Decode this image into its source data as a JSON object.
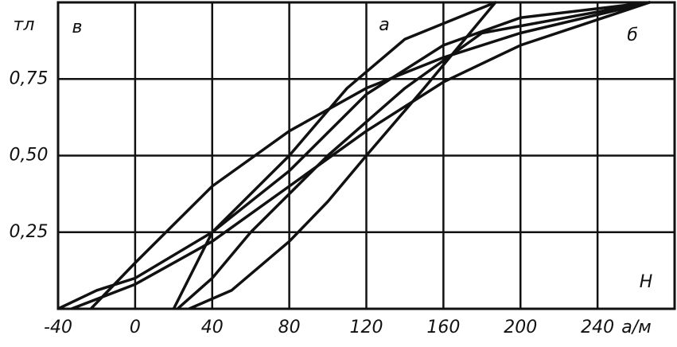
{
  "chart_data": {
    "type": "line",
    "y_unit": "тл",
    "x_label": "H",
    "x_unit": "а/м",
    "xlim": [
      -40,
      280
    ],
    "ylim": [
      0,
      1.0
    ],
    "xticks": [
      -40,
      0,
      40,
      80,
      120,
      160,
      200,
      240
    ],
    "yticks": [
      {
        "value": 0.25,
        "label": "0,25"
      },
      {
        "value": 0.5,
        "label": "0,50"
      },
      {
        "value": 0.75,
        "label": "0,75"
      }
    ],
    "grid": true,
    "series": [
      {
        "name": "а",
        "color": "#111111",
        "x": [
          20,
          40,
          80,
          110,
          140,
          187,
          150,
          120,
          100,
          80,
          50,
          28
        ],
        "values": [
          0,
          0.25,
          0.5,
          0.72,
          0.88,
          1.0,
          0.72,
          0.5,
          0.35,
          0.22,
          0.06,
          0
        ]
      },
      {
        "name": "б",
        "color": "#111111",
        "x": [
          -23,
          0,
          40,
          80,
          120,
          160,
          200,
          267,
          200,
          160,
          120,
          80,
          40,
          0,
          -33
        ],
        "values": [
          0,
          0.15,
          0.4,
          0.58,
          0.72,
          0.82,
          0.9,
          1.0,
          0.86,
          0.74,
          0.58,
          0.4,
          0.22,
          0.08,
          0
        ]
      },
      {
        "name": "в",
        "color": "#111111",
        "x": [
          -40,
          -20,
          0,
          40,
          80,
          120,
          160,
          200,
          267,
          180,
          140,
          100,
          60,
          40,
          22
        ],
        "values": [
          0,
          0.06,
          0.1,
          0.25,
          0.45,
          0.7,
          0.86,
          0.95,
          1.0,
          0.9,
          0.72,
          0.5,
          0.25,
          0.1,
          0
        ]
      }
    ]
  }
}
